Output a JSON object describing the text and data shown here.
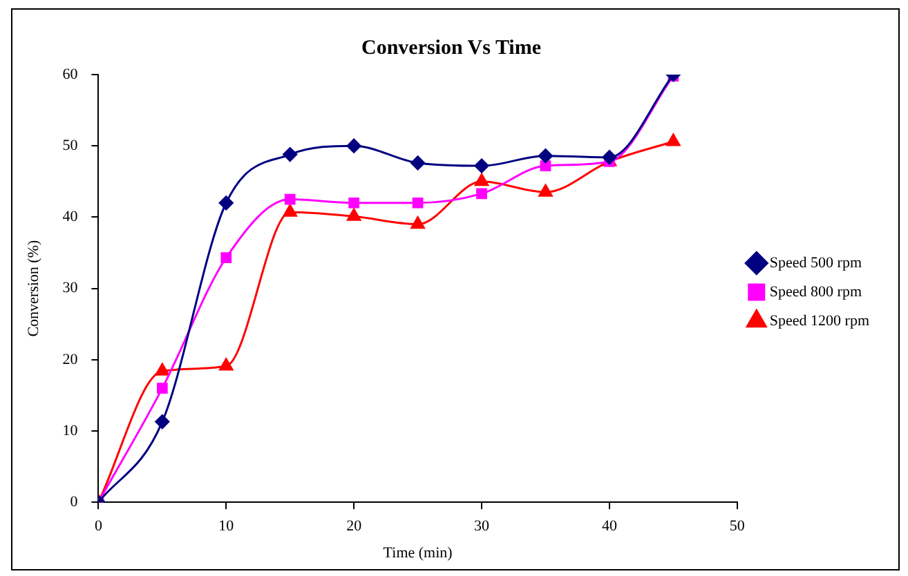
{
  "chart_data": {
    "type": "line",
    "title": "Conversion Vs Time",
    "xlabel": "Time (min)",
    "ylabel": "Conversion (%)",
    "x": [
      0,
      5,
      10,
      15,
      20,
      25,
      30,
      35,
      40,
      45
    ],
    "series": [
      {
        "name": "Speed 500 rpm",
        "color": "#000080",
        "marker": "diamond",
        "values": [
          0,
          11.3,
          42,
          48.8,
          50,
          47.6,
          47.2,
          48.6,
          48.4,
          60
        ]
      },
      {
        "name": "Speed 800 rpm",
        "color": "#ff00ff",
        "marker": "square",
        "values": [
          0,
          16,
          34.3,
          42.5,
          42,
          42,
          43.3,
          47.2,
          47.8,
          59.8
        ]
      },
      {
        "name": "Speed 1200 rpm",
        "color": "#ff0000",
        "marker": "triangle",
        "values": [
          0,
          18.4,
          19.1,
          40.7,
          40.1,
          39,
          45,
          43.5,
          47.8,
          50.6
        ]
      }
    ],
    "xlim": [
      0,
      50
    ],
    "xticks": [
      0,
      10,
      20,
      30,
      40,
      50
    ],
    "ylim": [
      0,
      60
    ],
    "yticks": [
      0,
      10,
      20,
      30,
      40,
      50,
      60
    ],
    "grid": false,
    "legend": "right"
  }
}
